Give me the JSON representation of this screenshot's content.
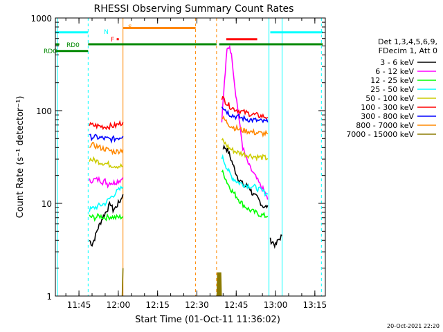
{
  "chart_data": {
    "type": "line",
    "title": "RHESSI Observing Summary Count Rates",
    "xlabel": "Start Time (01-Oct-11 11:36:02)",
    "ylabel": "Count Rate (s⁻¹ detector⁻¹)",
    "yscale": "log",
    "ylim": [
      1,
      1000
    ],
    "xlim_minutes": [
      0,
      103
    ],
    "x_ticks": [
      {
        "t": 9,
        "label": "11:45"
      },
      {
        "t": 24,
        "label": "12:00"
      },
      {
        "t": 39,
        "label": "12:15"
      },
      {
        "t": 54,
        "label": "12:30"
      },
      {
        "t": 69,
        "label": "12:45"
      },
      {
        "t": 84,
        "label": "13:00"
      },
      {
        "t": 99,
        "label": "13:15"
      }
    ],
    "y_ticks": [
      {
        "v": 1,
        "label": "1"
      },
      {
        "v": 10,
        "label": "10"
      },
      {
        "v": 100,
        "label": "100"
      },
      {
        "v": 1000,
        "label": "1000"
      }
    ],
    "legend_header": [
      "Det 1,3,4,5,6,9,",
      "FDecim 1, Att 0"
    ],
    "legend_position": "right",
    "timestamp": "20-Oct-2021 22:20",
    "series": [
      {
        "name": "3 - 6 keV",
        "color": "#000000",
        "segments": [
          {
            "x": [
              13.0,
              14.0,
              15.0,
              16.0,
              17.0,
              18.0,
              19.0,
              20.0,
              21.0,
              22.0,
              23.0,
              24.0,
              25.0,
              25.8
            ],
            "y": [
              4.0,
              3.6,
              4.2,
              5.2,
              6.0,
              7.0,
              7.8,
              8.8,
              10.0,
              8.5,
              9.0,
              10.0,
              11.0,
              12.5
            ]
          },
          {
            "x": [
              64.0,
              65.0,
              66.0,
              67.0,
              68.0,
              69.0,
              70.0,
              71.0,
              72.0,
              73.0,
              74.0,
              75.0,
              76.0,
              77.0,
              78.0,
              79.0,
              80.0,
              81.0
            ],
            "y": [
              40.0,
              40.0,
              36.0,
              30.0,
              25.0,
              21.0,
              18.0,
              17.0,
              15.0,
              15.5,
              15.0,
              13.0,
              12.0,
              11.5,
              10.5,
              9.5,
              9.0,
              9.5
            ]
          },
          {
            "x": [
              82.0,
              83.0,
              84.0,
              85.0,
              86.5
            ],
            "y": [
              4.0,
              3.8,
              3.5,
              4.0,
              4.5
            ]
          }
        ]
      },
      {
        "name": "6 - 12 keV",
        "color": "#ff00ff",
        "segments": [
          {
            "x": [
              13.0,
              15.0,
              17.0,
              18.0,
              19.0,
              20.0,
              21.0,
              22.0,
              23.0,
              24.0,
              25.0,
              25.8
            ],
            "y": [
              17.5,
              18.0,
              18.0,
              17.0,
              17.5,
              16.0,
              17.0,
              16.5,
              17.0,
              17.5,
              18.0,
              19.0
            ]
          },
          {
            "x": [
              63.5,
              64.5,
              65.5,
              66.5,
              67.5,
              68.5,
              69.5,
              70.5,
              71.5,
              72.5,
              74.0,
              76.0,
              78.0,
              80.0,
              81.0
            ],
            "y": [
              80.0,
              200.0,
              450.0,
              500.0,
              350.0,
              180.0,
              110.0,
              65.0,
              40.0,
              32.0,
              25.0,
              20.0,
              16.0,
              13.0,
              11.0
            ]
          }
        ]
      },
      {
        "name": "12 - 25 keV",
        "color": "#00ff00",
        "segments": [
          {
            "x": [
              13.0,
              15.0,
              17.0,
              19.0,
              21.0,
              23.0,
              25.8
            ],
            "y": [
              7.2,
              7.0,
              7.3,
              7.0,
              7.2,
              7.0,
              7.2
            ]
          },
          {
            "x": [
              63.5,
              64.5,
              65.5,
              66.5,
              67.5,
              68.5,
              69.5,
              70.5,
              72.0,
              74.0,
              76.0,
              78.0,
              80.0,
              81.0
            ],
            "y": [
              22.0,
              20.0,
              17.0,
              15.0,
              13.5,
              12.5,
              11.5,
              10.5,
              9.5,
              8.5,
              8.0,
              7.6,
              7.3,
              7.3
            ]
          }
        ]
      },
      {
        "name": "25 - 50 keV",
        "color": "#00ffff",
        "segments": [
          {
            "x": [
              13.0,
              15.0,
              17.0,
              19.0,
              21.0,
              23.0,
              25.8
            ],
            "y": [
              8.5,
              9.0,
              9.5,
              10.0,
              11.5,
              13.0,
              15.0
            ]
          },
          {
            "x": [
              63.5,
              64.5,
              65.5,
              66.5,
              67.5,
              68.5,
              69.5,
              70.5,
              72.0,
              74.0,
              76.0,
              78.0,
              80.0,
              81.0
            ],
            "y": [
              32.0,
              28.0,
              24.0,
              21.0,
              19.0,
              18.0,
              17.0,
              16.5,
              16.0,
              15.5,
              15.0,
              14.0,
              13.0,
              12.5
            ]
          }
        ]
      },
      {
        "name": "50 - 100 keV",
        "color": "#cccc00",
        "segments": [
          {
            "x": [
              13.0,
              15.0,
              17.0,
              19.0,
              21.0,
              23.0,
              25.8
            ],
            "y": [
              30.0,
              29.0,
              28.0,
              27.0,
              26.0,
              25.5,
              25.0
            ]
          },
          {
            "x": [
              63.5,
              64.5,
              65.5,
              66.5,
              68.0,
              70.0,
              72.0,
              74.0,
              76.0,
              78.0,
              80.0,
              81.0
            ],
            "y": [
              48.0,
              45.0,
              42.0,
              39.0,
              37.0,
              35.0,
              34.0,
              33.0,
              32.0,
              31.5,
              31.0,
              30.5
            ]
          }
        ]
      },
      {
        "name": "100 - 300 keV",
        "color": "#ff0000",
        "segments": [
          {
            "x": [
              13.0,
              15.0,
              17.0,
              19.0,
              21.0,
              23.0,
              25.8
            ],
            "y": [
              70.0,
              69.0,
              68.0,
              67.0,
              68.0,
              69.0,
              75.0
            ]
          },
          {
            "x": [
              63.5,
              64.5,
              65.5,
              66.5,
              68.0,
              70.0,
              72.0,
              74.0,
              76.0,
              78.0,
              80.0,
              81.0
            ],
            "y": [
              140.0,
              130.0,
              120.0,
              112.0,
              105.0,
              100.0,
              96.0,
              93.0,
              90.0,
              88.0,
              86.0,
              85.0
            ]
          }
        ]
      },
      {
        "name": "300 - 800 keV",
        "color": "#0000ff",
        "segments": [
          {
            "x": [
              13.0,
              15.0,
              17.0,
              19.0,
              21.0,
              23.0,
              25.8
            ],
            "y": [
              52.0,
              52.0,
              51.0,
              50.0,
              49.0,
              50.0,
              53.0
            ]
          },
          {
            "x": [
              63.5,
              64.5,
              65.5,
              66.5,
              68.0,
              70.0,
              72.0,
              74.0,
              76.0,
              78.0,
              80.0,
              81.0
            ],
            "y": [
              115.0,
              105.0,
              98.0,
              92.0,
              88.0,
              85.0,
              82.0,
              80.0,
              79.0,
              77.0,
              76.0,
              75.0
            ]
          }
        ]
      },
      {
        "name": "800 - 7000 keV",
        "color": "#ff8800",
        "segments": [
          {
            "x": [
              13.0,
              15.0,
              17.0,
              19.0,
              21.0,
              23.0,
              25.8
            ],
            "y": [
              43.0,
              42.0,
              40.0,
              38.5,
              37.0,
              36.0,
              38.0
            ]
          },
          {
            "x": [
              63.5,
              64.5,
              65.5,
              66.5,
              68.0,
              70.0,
              72.0,
              74.0,
              76.0,
              78.0,
              80.0,
              81.0
            ],
            "y": [
              85.0,
              80.0,
              75.0,
              70.0,
              66.0,
              63.0,
              61.0,
              60.0,
              58.0,
              57.0,
              56.5,
              56.0
            ]
          }
        ]
      },
      {
        "name": "7000 - 15000 keV",
        "color": "#8b7a00",
        "segments": [
          {
            "x": [
              25.5,
              25.8
            ],
            "y": [
              1.0,
              2.0
            ]
          },
          {
            "x": [
              61.7,
              61.9,
              62.1,
              62.3,
              62.5,
              62.7,
              62.9,
              63.1,
              63.3
            ],
            "y": [
              1.0,
              1.8,
              1.0,
              1.8,
              1.0,
              1.8,
              1.0,
              1.8,
              1.0
            ]
          }
        ]
      }
    ]
  },
  "flags": [
    {
      "name": "SAA",
      "label": "",
      "color": "#00ffff",
      "y_level": 700,
      "segments": [
        [
          0,
          12.5
        ],
        [
          82,
          102
        ]
      ]
    },
    {
      "name": "N",
      "label": "N",
      "color": "#00ffff",
      "y_level": 780,
      "segments": []
    },
    {
      "name": "S",
      "label": "S",
      "color": "#ff8800",
      "y_level": 780,
      "segments": [
        [
          25.8,
          53.5
        ]
      ]
    },
    {
      "name": "F",
      "label": "F",
      "color": "#ff0000",
      "y_level": 590,
      "segments": [
        [
          23.4,
          24.2
        ],
        [
          65.2,
          77.0
        ]
      ]
    },
    {
      "name": "RD0",
      "label": "RD0",
      "color": "#008800",
      "y_level": 520,
      "segments": [
        [
          0,
          1.5
        ]
      ]
    },
    {
      "name": "RDC",
      "label": "RDC",
      "color": "#008800",
      "y_level": 440,
      "segments": [
        [
          0,
          12.5
        ]
      ]
    },
    {
      "name": "Night",
      "label": "",
      "color": "#008800",
      "y_level": 520,
      "segments": [
        [
          12.5,
          61.5
        ],
        [
          62.5,
          102
        ]
      ]
    }
  ],
  "vlines": [
    {
      "t": 0.8,
      "color": "#00ffff",
      "style": "solid"
    },
    {
      "t": 12.5,
      "color": "#00ffff",
      "style": "dash"
    },
    {
      "t": 25.8,
      "color": "#ff8800",
      "style": "solid"
    },
    {
      "t": 53.5,
      "color": "#ff8800",
      "style": "dash"
    },
    {
      "t": 61.5,
      "color": "#ff8800",
      "style": "dash"
    },
    {
      "t": 81.5,
      "color": "#00ffff",
      "style": "solid"
    },
    {
      "t": 86.5,
      "color": "#00ffff",
      "style": "solid"
    },
    {
      "t": 101.5,
      "color": "#00ffff",
      "style": "dash"
    }
  ]
}
